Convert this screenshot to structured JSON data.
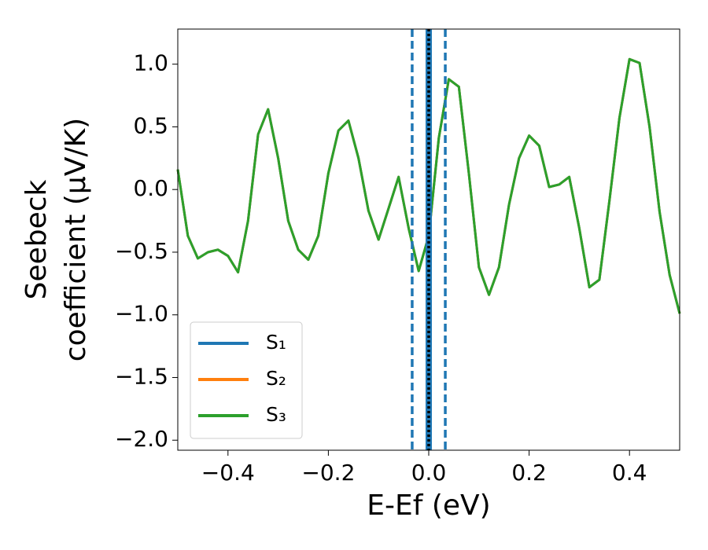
{
  "chart_data": {
    "type": "line",
    "xlabel": "E-Ef (eV)",
    "ylabel": [
      "Seebeck",
      "coefficient  (μV/K)"
    ],
    "x": [
      -0.5,
      -0.48,
      -0.46,
      -0.44,
      -0.42,
      -0.4,
      -0.38,
      -0.36,
      -0.34,
      -0.32,
      -0.3,
      -0.28,
      -0.26,
      -0.24,
      -0.22,
      -0.2,
      -0.18,
      -0.16,
      -0.14,
      -0.12,
      -0.1,
      -0.08,
      -0.06,
      -0.04,
      -0.02,
      0,
      0.02,
      0.04,
      0.06,
      0.08,
      0.1,
      0.12,
      0.14,
      0.16,
      0.18,
      0.2,
      0.22,
      0.24,
      0.26,
      0.28,
      0.3,
      0.32,
      0.34,
      0.36,
      0.38,
      0.4,
      0.42,
      0.44,
      0.46,
      0.48,
      0.5
    ],
    "series": [
      {
        "name": "S₁",
        "color": "#1f77b4",
        "values": [
          0.16,
          -0.37,
          -0.55,
          -0.5,
          -0.48,
          -0.53,
          -0.66,
          -0.25,
          0.44,
          0.64,
          0.25,
          -0.25,
          -0.48,
          -0.56,
          -0.37,
          0.13,
          0.47,
          0.55,
          0.25,
          -0.17,
          -0.4,
          -0.15,
          0.1,
          -0.31,
          -0.65,
          -0.37,
          0.41,
          0.88,
          0.82,
          0.13,
          -0.62,
          -0.84,
          -0.62,
          -0.12,
          0.25,
          0.43,
          0.35,
          0.02,
          0.04,
          0.1,
          -0.31,
          -0.78,
          -0.72,
          -0.09,
          0.57,
          1.04,
          1.01,
          0.5,
          -0.18,
          -0.68,
          -0.99
        ]
      },
      {
        "name": "S₂",
        "color": "#ff7f0e",
        "values": [
          0.16,
          -0.37,
          -0.55,
          -0.5,
          -0.48,
          -0.53,
          -0.66,
          -0.25,
          0.44,
          0.64,
          0.25,
          -0.25,
          -0.48,
          -0.56,
          -0.37,
          0.13,
          0.47,
          0.55,
          0.25,
          -0.17,
          -0.4,
          -0.15,
          0.1,
          -0.31,
          -0.65,
          -0.37,
          0.41,
          0.88,
          0.82,
          0.13,
          -0.62,
          -0.84,
          -0.62,
          -0.12,
          0.25,
          0.43,
          0.35,
          0.02,
          0.04,
          0.1,
          -0.31,
          -0.78,
          -0.72,
          -0.09,
          0.57,
          1.04,
          1.01,
          0.5,
          -0.18,
          -0.68,
          -0.99
        ]
      },
      {
        "name": "S₃",
        "color": "#2ca02c",
        "values": [
          0.16,
          -0.37,
          -0.55,
          -0.5,
          -0.48,
          -0.53,
          -0.66,
          -0.25,
          0.44,
          0.64,
          0.25,
          -0.25,
          -0.48,
          -0.56,
          -0.37,
          0.13,
          0.47,
          0.55,
          0.25,
          -0.17,
          -0.4,
          -0.15,
          0.1,
          -0.31,
          -0.65,
          -0.37,
          0.41,
          0.88,
          0.82,
          0.13,
          -0.62,
          -0.84,
          -0.62,
          -0.12,
          0.25,
          0.43,
          0.35,
          0.02,
          0.04,
          0.1,
          -0.31,
          -0.78,
          -0.72,
          -0.09,
          0.57,
          1.04,
          1.01,
          0.5,
          -0.18,
          -0.68,
          -0.99
        ]
      }
    ],
    "vlines": [
      {
        "x": -0.033,
        "color": "#1f77b4",
        "style": "dashed"
      },
      {
        "x": 0.033,
        "color": "#1f77b4",
        "style": "dashed"
      },
      {
        "x": 0,
        "color": "#1f77b4",
        "style": "solid"
      },
      {
        "x": 0,
        "color": "#000000",
        "style": "dotted"
      }
    ],
    "xlim": [
      -0.5,
      0.5
    ],
    "ylim": [
      -2.08,
      1.28
    ],
    "xticks": [
      {
        "value": -0.4,
        "label": "−0.4"
      },
      {
        "value": -0.2,
        "label": "−0.2"
      },
      {
        "value": 0,
        "label": "0.0"
      },
      {
        "value": 0.2,
        "label": "0.2"
      },
      {
        "value": 0.4,
        "label": "0.4"
      }
    ],
    "yticks": [
      {
        "value": -2,
        "label": "−2.0"
      },
      {
        "value": -1.5,
        "label": "−1.5"
      },
      {
        "value": -1,
        "label": "−1.0"
      },
      {
        "value": -0.5,
        "label": "−0.5"
      },
      {
        "value": 0,
        "label": "0.0"
      },
      {
        "value": 0.5,
        "label": "0.5"
      },
      {
        "value": 1,
        "label": "1.0"
      }
    ],
    "legend": "lower left",
    "grid": false
  }
}
